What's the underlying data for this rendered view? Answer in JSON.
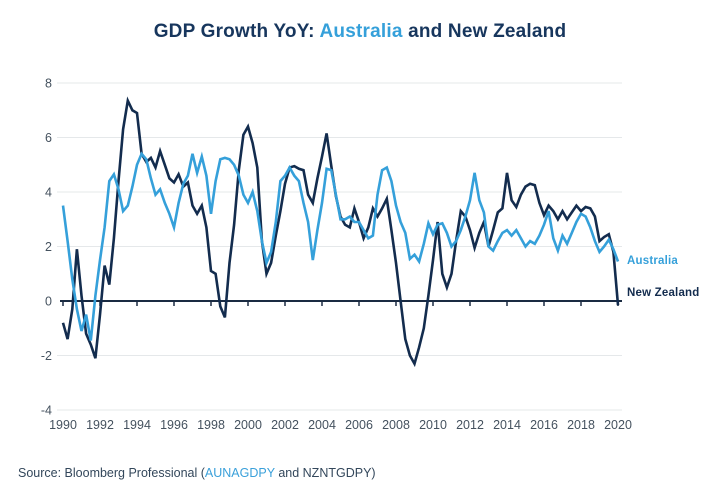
{
  "title": {
    "prefix": "GDP Growth YoY: ",
    "highlight": "Australia",
    "suffix": " and New Zealand"
  },
  "legend": {
    "australia": "Australia",
    "new_zealand": "New Zealand"
  },
  "source": {
    "prefix": "Source: Bloomberg Professional (",
    "ticker_au": "AUNAGDPY",
    "middle": " and ",
    "ticker_nz": "NZNTGDPY",
    "suffix": ")"
  },
  "colors": {
    "australia_line": "#35A0DA",
    "new_zealand_line": "#132C4E",
    "title_navy": "#17365D",
    "title_blue": "#35A0DA",
    "grid": "#E5E8EA",
    "zero_axis": "#1A2B42",
    "axis_text": "#45525F",
    "source_text": "#33475B",
    "background": "#FFFFFF"
  },
  "chart_data": {
    "type": "line",
    "title": "GDP Growth YoY: Australia and New Zealand",
    "xlabel": "",
    "ylabel": "",
    "xlim": [
      1990,
      2020.2
    ],
    "ylim": [
      -4,
      8
    ],
    "grid": true,
    "legend_position": "right-of-line-ends",
    "x_unit": "year (quarterly points)",
    "x_start": 1990,
    "x_step": 0.25,
    "x_ticks": [
      1990,
      1992,
      1994,
      1996,
      1998,
      2000,
      2002,
      2004,
      2006,
      2008,
      2010,
      2012,
      2014,
      2016,
      2018,
      2020
    ],
    "y_ticks": [
      8,
      6,
      4,
      2,
      0,
      -2,
      -4
    ],
    "series": [
      {
        "name": "Australia",
        "color": "#35A0DA",
        "values": [
          3.5,
          2.2,
          0.8,
          -0.3,
          -1.1,
          -0.5,
          -1.45,
          0.2,
          1.5,
          2.7,
          4.4,
          4.65,
          4.1,
          3.3,
          3.5,
          4.2,
          5.0,
          5.4,
          5.2,
          4.5,
          3.9,
          4.1,
          3.6,
          3.2,
          2.7,
          3.6,
          4.3,
          4.6,
          5.4,
          4.7,
          5.3,
          4.6,
          3.2,
          4.4,
          5.2,
          5.25,
          5.2,
          5.0,
          4.6,
          3.9,
          3.6,
          4.0,
          3.3,
          2.2,
          1.4,
          1.8,
          2.9,
          4.4,
          4.6,
          4.9,
          4.6,
          4.4,
          3.6,
          2.9,
          1.5,
          2.6,
          3.6,
          4.85,
          4.8,
          3.9,
          3.0,
          3.0,
          3.1,
          2.9,
          2.9,
          2.6,
          2.3,
          2.4,
          3.9,
          4.8,
          4.9,
          4.4,
          3.5,
          2.9,
          2.5,
          1.55,
          1.7,
          1.45,
          2.1,
          2.85,
          2.45,
          2.8,
          2.85,
          2.5,
          2.0,
          2.2,
          2.6,
          3.1,
          3.7,
          4.7,
          3.7,
          3.25,
          2.0,
          1.85,
          2.2,
          2.5,
          2.6,
          2.4,
          2.6,
          2.3,
          2.0,
          2.2,
          2.1,
          2.4,
          2.8,
          3.3,
          2.3,
          1.85,
          2.4,
          2.1,
          2.5,
          2.9,
          3.2,
          3.1,
          2.7,
          2.2,
          1.8,
          2.0,
          2.25,
          1.9,
          1.45
        ]
      },
      {
        "name": "New Zealand",
        "color": "#132C4E",
        "values": [
          -0.8,
          -1.4,
          -0.3,
          1.9,
          0.2,
          -1.2,
          -1.6,
          -2.1,
          -0.5,
          1.3,
          0.6,
          2.3,
          4.4,
          6.3,
          7.35,
          7.0,
          6.9,
          5.4,
          5.1,
          5.25,
          4.9,
          5.5,
          5.0,
          4.5,
          4.35,
          4.65,
          4.2,
          4.35,
          3.5,
          3.2,
          3.5,
          2.7,
          1.1,
          1.0,
          -0.2,
          -0.6,
          1.4,
          2.8,
          4.8,
          6.1,
          6.4,
          5.8,
          4.9,
          2.2,
          1.0,
          1.4,
          2.4,
          3.3,
          4.3,
          4.9,
          4.95,
          4.85,
          4.8,
          3.9,
          3.6,
          4.5,
          5.3,
          6.15,
          4.95,
          3.85,
          3.1,
          2.8,
          2.7,
          3.4,
          2.9,
          2.3,
          2.7,
          3.4,
          3.1,
          3.4,
          3.75,
          2.6,
          1.4,
          0.0,
          -1.4,
          -2.0,
          -2.3,
          -1.7,
          -1.0,
          0.2,
          1.5,
          2.9,
          1.0,
          0.5,
          1.0,
          2.2,
          3.3,
          3.1,
          2.6,
          1.95,
          2.5,
          2.9,
          2.0,
          2.6,
          3.25,
          3.4,
          4.7,
          3.7,
          3.45,
          3.9,
          4.2,
          4.3,
          4.25,
          3.6,
          3.15,
          3.5,
          3.3,
          3.0,
          3.3,
          3.0,
          3.25,
          3.5,
          3.3,
          3.45,
          3.4,
          3.1,
          2.2,
          2.35,
          2.45,
          1.8,
          -0.15
        ]
      }
    ]
  }
}
